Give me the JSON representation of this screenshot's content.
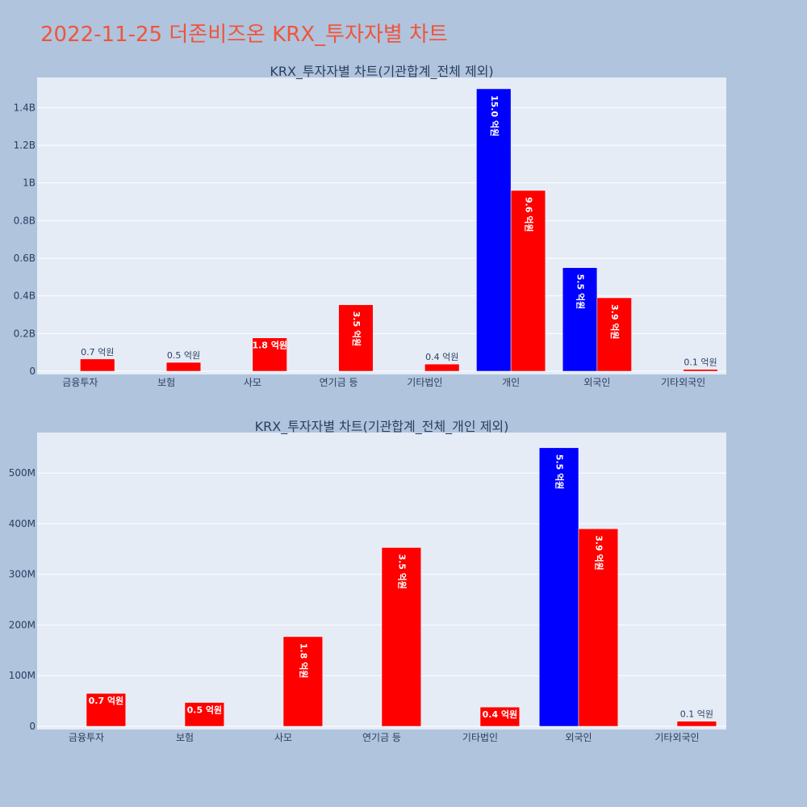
{
  "page_title": "2022-11-25 더존비즈온 KRX_투자자별 차트",
  "colors": {
    "buy": "#0000ff",
    "sell": "#ff0000"
  },
  "chart_data": [
    {
      "type": "bar",
      "title": "KRX_투자자별 차트(기관합계_전체 제외)",
      "categories": [
        "금융투자",
        "보험",
        "사모",
        "연기금 등",
        "기타법인",
        "개인",
        "외국인",
        "기타외국인"
      ],
      "yticks": [
        {
          "value": 0,
          "label": "0"
        },
        {
          "value": 200000000,
          "label": "0.2B"
        },
        {
          "value": 400000000,
          "label": "0.4B"
        },
        {
          "value": 600000000,
          "label": "0.6B"
        },
        {
          "value": 800000000,
          "label": "0.8B"
        },
        {
          "value": 1000000000,
          "label": "1B"
        },
        {
          "value": 1200000000,
          "label": "1.2B"
        },
        {
          "value": 1400000000,
          "label": "1.4B"
        }
      ],
      "ylim": [
        0,
        1560000000
      ],
      "series": [
        {
          "color": "#0000ff",
          "values": [
            null,
            null,
            null,
            null,
            null,
            1500000000,
            550000000,
            null
          ],
          "labels": [
            "",
            "",
            "",
            "",
            "",
            "15.0 억원",
            "5.5 억원",
            ""
          ]
        },
        {
          "color": "#ff0000",
          "values": [
            65000000,
            47000000,
            177000000,
            353000000,
            38000000,
            960000000,
            390000000,
            10000000
          ],
          "labels": [
            "0.7 억원",
            "0.5 억원",
            "1.8 억원",
            "3.5 억원",
            "0.4 억원",
            "9.6 억원",
            "3.9 억원",
            "0.1 억원"
          ]
        }
      ]
    },
    {
      "type": "bar",
      "title": "KRX_투자자별 차트(기관합계_전체_개인 제외)",
      "categories": [
        "금융투자",
        "보험",
        "사모",
        "연기금 등",
        "기타법인",
        "외국인",
        "기타외국인"
      ],
      "yticks": [
        {
          "value": 0,
          "label": "0"
        },
        {
          "value": 100000000,
          "label": "100M"
        },
        {
          "value": 200000000,
          "label": "200M"
        },
        {
          "value": 300000000,
          "label": "300M"
        },
        {
          "value": 400000000,
          "label": "400M"
        },
        {
          "value": 500000000,
          "label": "500M"
        }
      ],
      "ylim": [
        0,
        580000000
      ],
      "series": [
        {
          "color": "#0000ff",
          "values": [
            null,
            null,
            null,
            null,
            null,
            550000000,
            null
          ],
          "labels": [
            "",
            "",
            "",
            "",
            "",
            "5.5 억원",
            ""
          ]
        },
        {
          "color": "#ff0000",
          "values": [
            65000000,
            47000000,
            177000000,
            353000000,
            38000000,
            390000000,
            10000000
          ],
          "labels": [
            "0.7 억원",
            "0.5 억원",
            "1.8 억원",
            "3.5 억원",
            "0.4 억원",
            "3.9 억원",
            "0.1 억원"
          ]
        }
      ]
    }
  ]
}
